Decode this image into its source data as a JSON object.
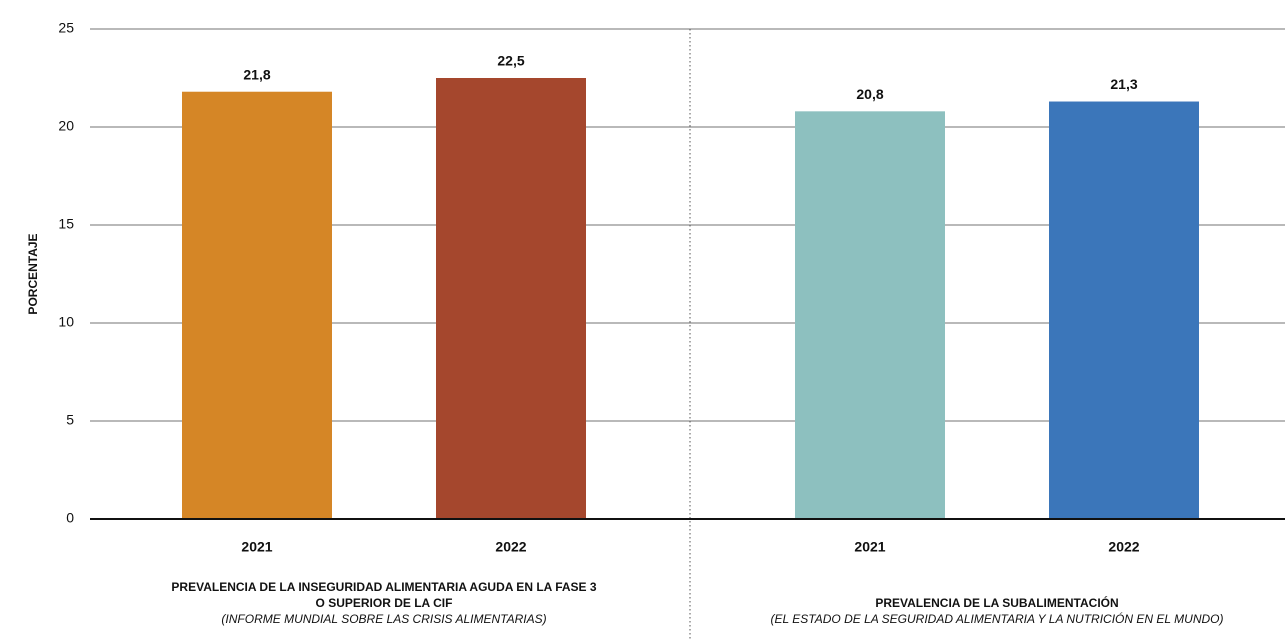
{
  "chart_data": {
    "type": "bar",
    "y_label": "PORCENTAJE",
    "categories": [
      "2021",
      "2022",
      "2021",
      "2022"
    ],
    "values": [
      21.8,
      22.5,
      20.8,
      21.3
    ],
    "value_labels": [
      "21,8",
      "22,5",
      "20,8",
      "21,3"
    ],
    "colors": [
      "#d58626",
      "#a5472d",
      "#8dc0bf",
      "#3b76ba"
    ],
    "groups": [
      {
        "label_lines": [
          "PREVALENCIA DE LA INSEGURIDAD ALIMENTARIA AGUDA EN LA FASE 3",
          "O SUPERIOR DE LA CIF"
        ],
        "source": "(INFORME MUNDIAL SOBRE LAS CRISIS ALIMENTARIAS)"
      },
      {
        "label_lines": [
          "PREVALENCIA DE LA SUBALIMENTACIÓN"
        ],
        "source": "(EL ESTADO DE LA SEGURIDAD ALIMENTARIA Y LA NUTRICIÓN EN EL MUNDO)"
      }
    ],
    "ylim": [
      0,
      25
    ],
    "yticks": [
      0,
      5,
      10,
      15,
      20,
      25
    ],
    "grid": true
  }
}
